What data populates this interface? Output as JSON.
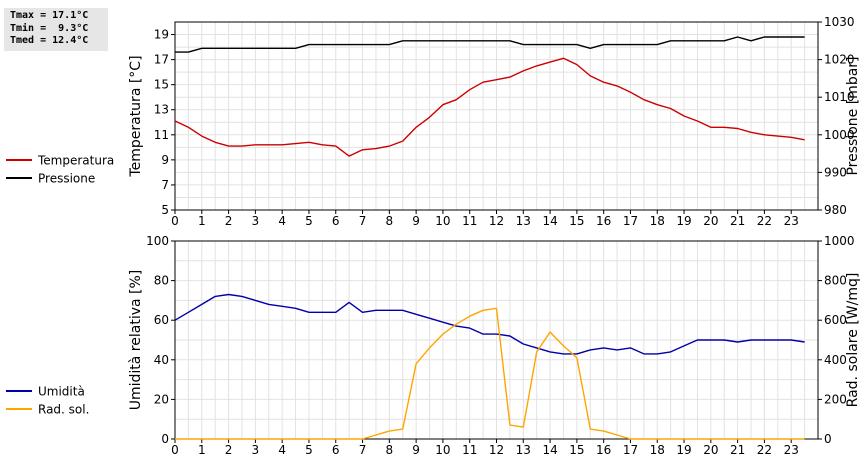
{
  "stats": {
    "tmax": "Tmax = 17.1°C",
    "tmin": "Tmin =  9.3°C",
    "tmed": "Tmed = 12.4°C"
  },
  "legend_top": [
    {
      "label": "Temperatura",
      "color": "#cc0000"
    },
    {
      "label": "Pressione",
      "color": "#000000"
    }
  ],
  "legend_bottom": [
    {
      "label": "Umidità",
      "color": "#0000aa"
    },
    {
      "label": "Rad. sol.",
      "color": "#ffa500"
    }
  ],
  "chart_data": [
    {
      "type": "line",
      "xlabel": "",
      "ylabel_left": "Temperatura [°C]",
      "ylabel_right": "Pressione [mbar]",
      "xlim": [
        0,
        24
      ],
      "x_ticks": [
        0,
        1,
        2,
        3,
        4,
        5,
        6,
        7,
        8,
        9,
        10,
        11,
        12,
        13,
        14,
        15,
        16,
        17,
        18,
        19,
        20,
        21,
        22,
        23
      ],
      "ylim_left": [
        5,
        20
      ],
      "y_ticks_left": [
        5,
        7,
        9,
        11,
        13,
        15,
        17,
        19
      ],
      "ylim_right": [
        980,
        1030
      ],
      "y_ticks_right": [
        980,
        990,
        1000,
        1010,
        1020,
        1030
      ],
      "grid": true,
      "series": [
        {
          "name": "Temperatura",
          "axis": "left",
          "color": "#cc0000",
          "x": [
            0,
            0.5,
            1,
            1.5,
            2,
            2.5,
            3,
            3.5,
            4,
            4.5,
            5,
            5.5,
            6,
            6.5,
            7,
            7.5,
            8,
            8.5,
            9,
            9.5,
            10,
            10.5,
            11,
            11.5,
            12,
            12.5,
            13,
            13.5,
            14,
            14.5,
            15,
            15.5,
            16,
            16.5,
            17,
            17.5,
            18,
            18.5,
            19,
            19.5,
            20,
            20.5,
            21,
            21.5,
            22,
            22.5,
            23,
            23.5
          ],
          "y": [
            12.1,
            11.6,
            10.9,
            10.4,
            10.1,
            10.1,
            10.2,
            10.2,
            10.2,
            10.3,
            10.4,
            10.2,
            10.1,
            9.3,
            9.8,
            9.9,
            10.1,
            10.5,
            11.6,
            12.4,
            13.4,
            13.8,
            14.6,
            15.2,
            15.4,
            15.6,
            16.1,
            16.5,
            16.8,
            17.1,
            16.6,
            15.7,
            15.2,
            14.9,
            14.4,
            13.8,
            13.4,
            13.1,
            12.5,
            12.1,
            11.6,
            11.6,
            11.5,
            11.2,
            11.0,
            10.9,
            10.8,
            10.6
          ]
        },
        {
          "name": "Pressione",
          "axis": "right",
          "color": "#000000",
          "x": [
            0,
            0.5,
            1,
            1.5,
            2,
            2.5,
            3,
            3.5,
            4,
            4.5,
            5,
            5.5,
            6,
            6.5,
            7,
            7.5,
            8,
            8.5,
            9,
            9.5,
            10,
            10.5,
            11,
            11.5,
            12,
            12.5,
            13,
            13.5,
            14,
            14.5,
            15,
            15.5,
            16,
            16.5,
            17,
            17.5,
            18,
            18.5,
            19,
            19.5,
            20,
            20.5,
            21,
            21.5,
            22,
            22.5,
            23,
            23.5
          ],
          "y": [
            1022,
            1022,
            1023,
            1023,
            1023,
            1023,
            1023,
            1023,
            1023,
            1023,
            1024,
            1024,
            1024,
            1024,
            1024,
            1024,
            1024,
            1025,
            1025,
            1025,
            1025,
            1025,
            1025,
            1025,
            1025,
            1025,
            1024,
            1024,
            1024,
            1024,
            1024,
            1023,
            1024,
            1024,
            1024,
            1024,
            1024,
            1025,
            1025,
            1025,
            1025,
            1025,
            1026,
            1025,
            1026,
            1026,
            1026,
            1026
          ]
        }
      ]
    },
    {
      "type": "line",
      "xlabel": "",
      "ylabel_left": "Umidità relativa [%]",
      "ylabel_right": "Rad. solare [W/mq]",
      "xlim": [
        0,
        24
      ],
      "x_ticks": [
        0,
        1,
        2,
        3,
        4,
        5,
        6,
        7,
        8,
        9,
        10,
        11,
        12,
        13,
        14,
        15,
        16,
        17,
        18,
        19,
        20,
        21,
        22,
        23
      ],
      "ylim_left": [
        0,
        100
      ],
      "y_ticks_left": [
        0,
        20,
        40,
        60,
        80,
        100
      ],
      "ylim_right": [
        0,
        1000
      ],
      "y_ticks_right": [
        0,
        200,
        400,
        600,
        800,
        1000
      ],
      "grid": true,
      "series": [
        {
          "name": "Umidità",
          "axis": "left",
          "color": "#0000aa",
          "x": [
            0,
            0.5,
            1,
            1.5,
            2,
            2.5,
            3,
            3.5,
            4,
            4.5,
            5,
            5.5,
            6,
            6.5,
            7,
            7.5,
            8,
            8.5,
            9,
            9.5,
            10,
            10.5,
            11,
            11.5,
            12,
            12.5,
            13,
            13.5,
            14,
            14.5,
            15,
            15.5,
            16,
            16.5,
            17,
            17.5,
            18,
            18.5,
            19,
            19.5,
            20,
            20.5,
            21,
            21.5,
            22,
            22.5,
            23,
            23.5
          ],
          "y": [
            60,
            64,
            68,
            72,
            73,
            72,
            70,
            68,
            67,
            66,
            64,
            64,
            64,
            69,
            64,
            65,
            65,
            65,
            63,
            61,
            59,
            57,
            56,
            53,
            53,
            52,
            48,
            46,
            44,
            43,
            43,
            45,
            46,
            45,
            46,
            43,
            43,
            44,
            47,
            50,
            50,
            50,
            49,
            50,
            50,
            50,
            50,
            49
          ]
        },
        {
          "name": "Rad. sol.",
          "axis": "right",
          "color": "#ffa500",
          "x": [
            0,
            0.5,
            1,
            1.5,
            2,
            2.5,
            3,
            3.5,
            4,
            4.5,
            5,
            5.5,
            6,
            6.5,
            7,
            7.5,
            8,
            8.5,
            9,
            9.5,
            10,
            10.5,
            11,
            11.5,
            12,
            12.5,
            13,
            13.5,
            14,
            14.5,
            15,
            15.5,
            16,
            16.5,
            17,
            17.5,
            18,
            18.5,
            19,
            19.5,
            20,
            20.5,
            21,
            21.5,
            22,
            22.5,
            23,
            23.5
          ],
          "y": [
            0,
            0,
            0,
            0,
            0,
            0,
            0,
            0,
            0,
            0,
            0,
            0,
            0,
            0,
            0,
            20,
            40,
            50,
            380,
            460,
            530,
            580,
            620,
            650,
            660,
            70,
            60,
            440,
            540,
            470,
            410,
            50,
            40,
            20,
            0,
            0,
            0,
            0,
            0,
            0,
            0,
            0,
            0,
            0,
            0,
            0,
            0,
            0
          ]
        }
      ]
    }
  ]
}
